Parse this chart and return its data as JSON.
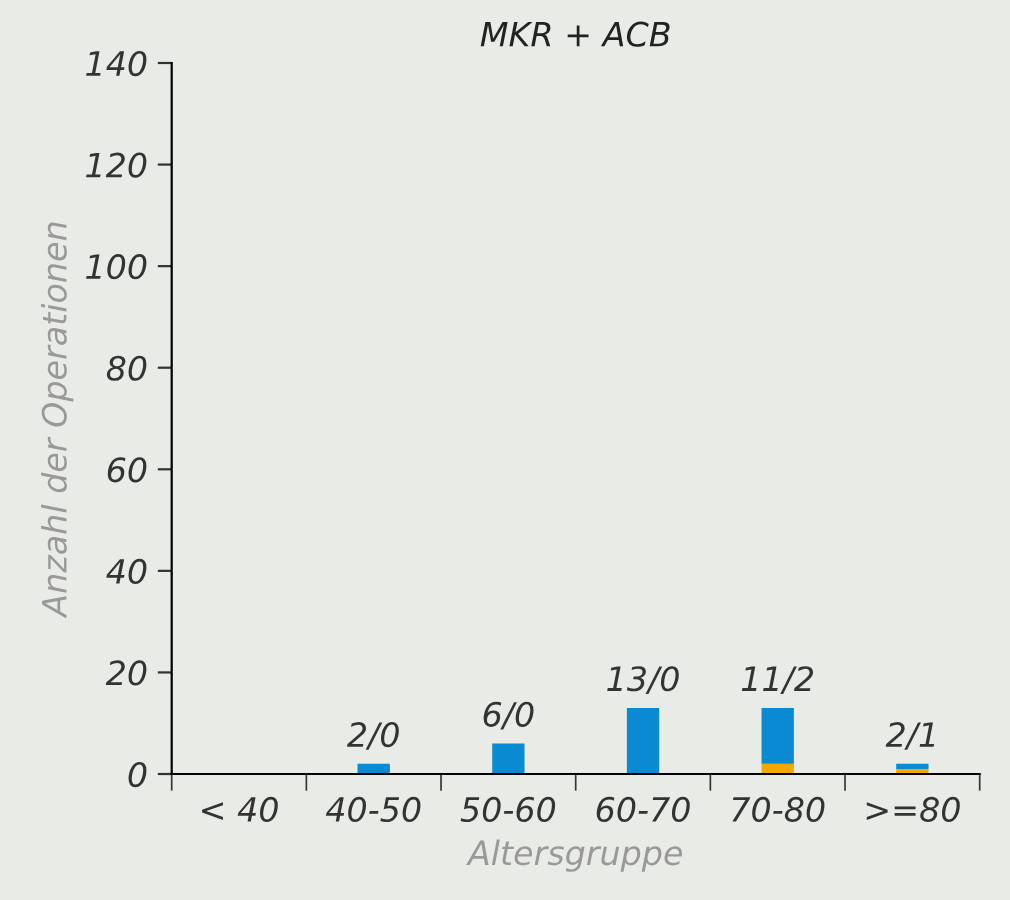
{
  "chart_data": {
    "type": "bar",
    "title": "MKR + ACB",
    "xlabel": "Altersgruppe",
    "ylabel": "Anzahl der Operationen",
    "categories": [
      "< 40",
      "40-50",
      "50-60",
      "60-70",
      "70-80",
      ">=80"
    ],
    "stacked": true,
    "series": [
      {
        "color": "#f0a800",
        "values": [
          0,
          0,
          0,
          0,
          2,
          1
        ]
      },
      {
        "color": "#0a8ad0",
        "values": [
          0,
          2,
          6,
          13,
          11,
          1
        ]
      }
    ],
    "totals": [
      null,
      "2/0",
      "6/0",
      "13/0",
      "11/2",
      "2/1"
    ],
    "ylim": [
      0,
      140
    ],
    "yticks": [
      0,
      20,
      40,
      60,
      80,
      100,
      120,
      140
    ],
    "grid": false,
    "legend": false
  }
}
